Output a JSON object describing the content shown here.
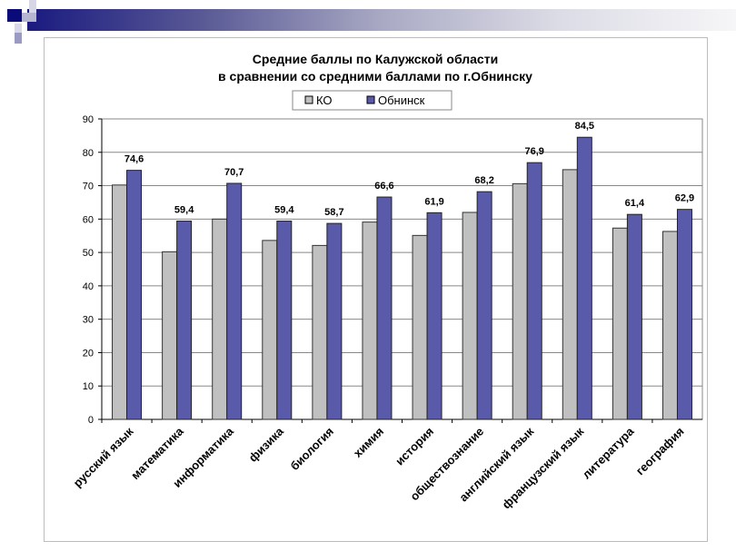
{
  "chart_data": {
    "type": "bar",
    "title": [
      "Средние баллы по Калужской области",
      "в сравнении со средними баллами по г.Обнинску"
    ],
    "categories": [
      "русский язык",
      "математика",
      "информатика",
      "физика",
      "биология",
      "химия",
      "история",
      "обществознание",
      "английский язык",
      "французский язык",
      "литература",
      "география"
    ],
    "series": [
      {
        "name": "КО",
        "color": "#c0c0c0",
        "values": [
          70.2,
          50.2,
          60.0,
          53.6,
          52.1,
          59.1,
          55.1,
          62.0,
          70.6,
          74.8,
          57.3,
          56.3
        ]
      },
      {
        "name": "Обнинск",
        "color": "#5a5aaa",
        "values": [
          74.6,
          59.4,
          70.7,
          59.4,
          58.7,
          66.6,
          61.9,
          68.2,
          76.9,
          84.5,
          61.4,
          62.9
        ],
        "labels": [
          "74,6",
          "59,4",
          "70,7",
          "59,4",
          "58,7",
          "66,6",
          "61,9",
          "68,2",
          "76,9",
          "84,5",
          "61,4",
          "62,9"
        ]
      }
    ],
    "ylim": [
      0,
      90
    ],
    "yticks": [
      0,
      10,
      20,
      30,
      40,
      50,
      60,
      70,
      80,
      90
    ],
    "grid": true,
    "legend": "top-center"
  }
}
